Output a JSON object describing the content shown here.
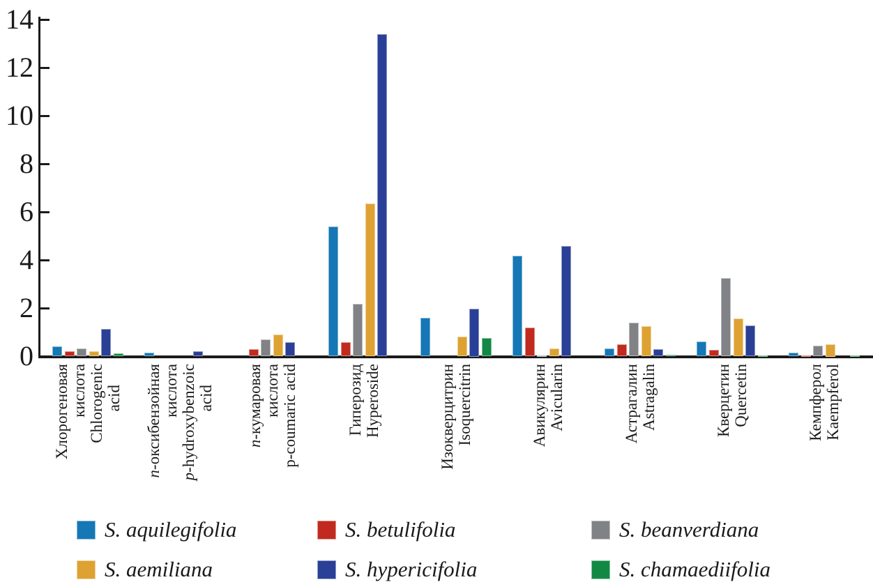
{
  "chart_data": {
    "type": "bar",
    "title": "",
    "xlabel": "",
    "ylabel": "",
    "ylim": [
      0,
      14
    ],
    "yticks": [
      0,
      2,
      4,
      6,
      8,
      10,
      12,
      14
    ],
    "grid": false,
    "legend_position": "bottom",
    "categories": [
      {
        "ru": "Хлорогеновая кислота",
        "en": "Chlorogenic acid",
        "label_lines": [
          {
            "text": "Хлорогеновая"
          },
          {
            "text": "кислота"
          },
          {
            "text": "Chlorogenic"
          },
          {
            "text": "acid",
            "indent": true
          }
        ]
      },
      {
        "ru": "п-оксибензойная кислота",
        "en": "p-hydroxybenzoic acid",
        "label_lines": [
          {
            "text": "п-оксибензойная",
            "italic_first": true
          },
          {
            "text": "кислота"
          },
          {
            "text": "p-hydroxybenzoic",
            "italic_first": true
          },
          {
            "text": "acid",
            "indent": true
          }
        ]
      },
      {
        "ru": "п-кумаровая кислота",
        "en": "p-coumaric acid",
        "label_lines": [
          {
            "text": "п-кумаровая",
            "italic_first": true
          },
          {
            "text": "кислота"
          },
          {
            "text": "p-coumaric acid"
          }
        ]
      },
      {
        "ru": "Гиперозид",
        "en": "Hyperoside",
        "label_lines": [
          {
            "text": "Гиперозид"
          },
          {
            "text": "Hyperoside"
          }
        ]
      },
      {
        "ru": "Изокверцитрин",
        "en": "Isoquercitrin",
        "label_lines": [
          {
            "text": "Изокверцитрин"
          },
          {
            "text": "Isoquercitrin"
          }
        ]
      },
      {
        "ru": "Авикулярин",
        "en": "Avicularin",
        "label_lines": [
          {
            "text": "Авикулярин"
          },
          {
            "text": "Avicularin"
          }
        ]
      },
      {
        "ru": "Астрагалин",
        "en": "Astragalin",
        "label_lines": [
          {
            "text": "Астрагалин"
          },
          {
            "text": "Astragalin"
          }
        ]
      },
      {
        "ru": "Кверцетин",
        "en": "Quercetin",
        "label_lines": [
          {
            "text": "Кверцетин"
          },
          {
            "text": "Quercetin"
          }
        ]
      },
      {
        "ru": "Кемпферол",
        "en": "Kaempferol",
        "label_lines": [
          {
            "text": "Кемпферол"
          },
          {
            "text": "Kaempferol"
          }
        ]
      }
    ],
    "series": [
      {
        "name": "S. aquilegifolia",
        "color": "#1577B5",
        "values": [
          0.43,
          0.15,
          0,
          5.4,
          1.6,
          4.2,
          0.32,
          0.63,
          0.15
        ]
      },
      {
        "name": "S. betulifolia",
        "color": "#C12A1E",
        "values": [
          0.22,
          0,
          0.3,
          0.6,
          0,
          1.2,
          0.52,
          0.28,
          0.05
        ]
      },
      {
        "name": "S. beanverdiana",
        "color": "#808285",
        "values": [
          0.33,
          0,
          0.7,
          2.2,
          0,
          0.05,
          1.42,
          3.26,
          0.45
        ]
      },
      {
        "name": "S. aemiliana",
        "color": "#DEA233",
        "values": [
          0.21,
          0,
          0.91,
          6.35,
          0.82,
          0.33,
          1.26,
          1.59,
          0.5
        ]
      },
      {
        "name": "S. hypericifolia",
        "color": "#2A3F96",
        "values": [
          1.14,
          0.22,
          0.6,
          13.4,
          2.0,
          4.6,
          0.31,
          1.28,
          0
        ]
      },
      {
        "name": "S. chamaediifolia",
        "color": "#118944",
        "values": [
          0.12,
          0,
          0,
          0,
          0.77,
          0,
          0.08,
          0.05,
          0.05
        ]
      }
    ],
    "legend_rows": [
      [
        "S. aquilegifolia",
        "S. betulifolia",
        "S. beanverdiana"
      ],
      [
        "S. aemiliana",
        "S. hypericifolia",
        "S. chamaediifolia"
      ]
    ]
  }
}
